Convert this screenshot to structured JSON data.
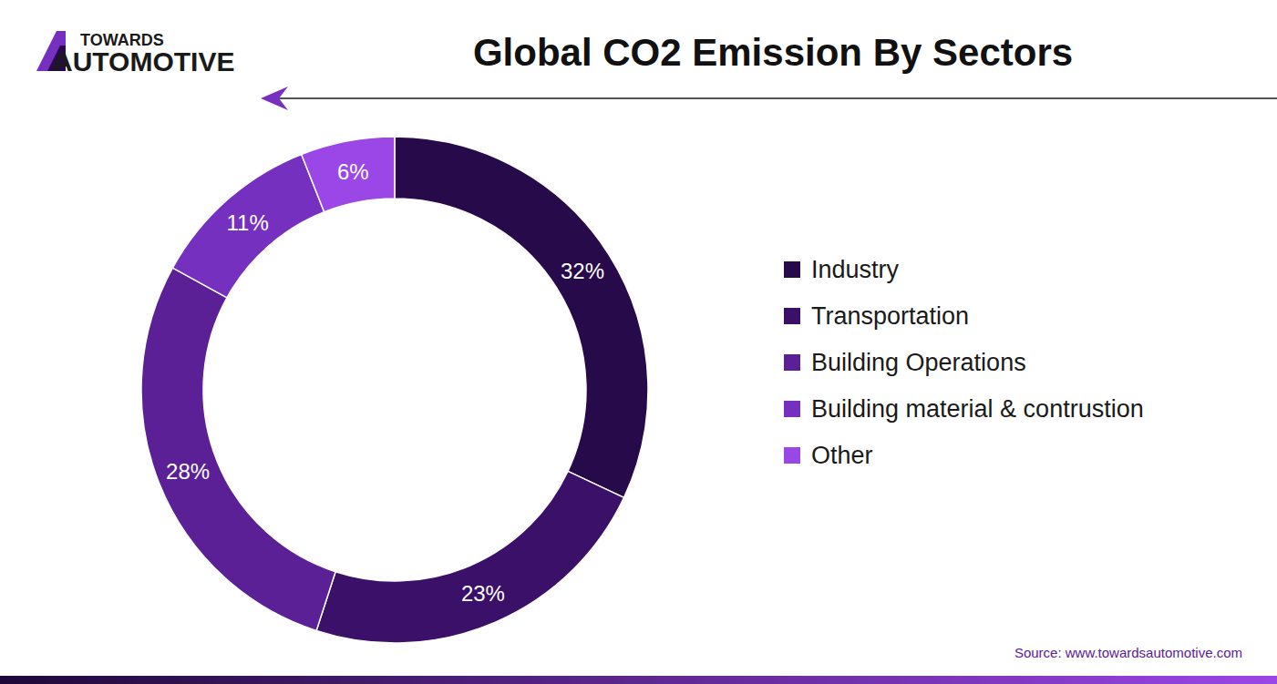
{
  "header": {
    "logo": [
      "TOWARDS",
      "AUTOMOTIVE"
    ]
  },
  "chart_data": {
    "type": "pie",
    "title": "Global CO2 Emission By Sectors",
    "categories": [
      "Industry",
      "Transportation",
      "Building Operations",
      "Building material & contrustion",
      "Other"
    ],
    "values": [
      32,
      23,
      28,
      11,
      6
    ],
    "value_labels": [
      "32%",
      "23%",
      "28%",
      "11%",
      "6%"
    ],
    "colors": [
      "#260a4a",
      "#3a1068",
      "#5b2095",
      "#7530c0",
      "#9b46e6"
    ],
    "data_labels": true,
    "legend": "right",
    "source": "Source: www.towardsautomotive.com"
  }
}
